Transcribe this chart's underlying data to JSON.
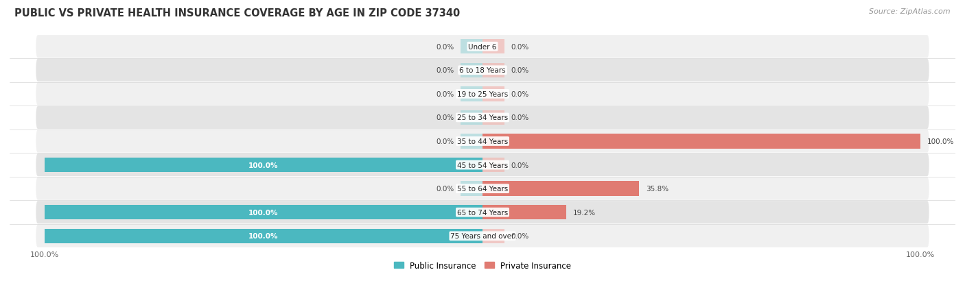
{
  "title": "PUBLIC VS PRIVATE HEALTH INSURANCE COVERAGE BY AGE IN ZIP CODE 37340",
  "source": "Source: ZipAtlas.com",
  "age_groups": [
    "Under 6",
    "6 to 18 Years",
    "19 to 25 Years",
    "25 to 34 Years",
    "35 to 44 Years",
    "45 to 54 Years",
    "55 to 64 Years",
    "65 to 74 Years",
    "75 Years and over"
  ],
  "public_values": [
    0.0,
    0.0,
    0.0,
    0.0,
    0.0,
    100.0,
    0.0,
    100.0,
    100.0
  ],
  "private_values": [
    0.0,
    0.0,
    0.0,
    0.0,
    100.0,
    0.0,
    35.8,
    19.2,
    0.0
  ],
  "public_color": "#4bb8c0",
  "public_color_light": "#a8d8db",
  "private_color": "#e07b72",
  "private_color_light": "#f0b8b3",
  "public_label": "Public Insurance",
  "private_label": "Private Insurance",
  "row_bg_light": "#f0f0f0",
  "row_bg_dark": "#e4e4e4",
  "title_fontsize": 10.5,
  "source_fontsize": 8,
  "label_fontsize": 7.5,
  "value_fontsize": 7.5,
  "max_val": 100,
  "stub_val": 5
}
